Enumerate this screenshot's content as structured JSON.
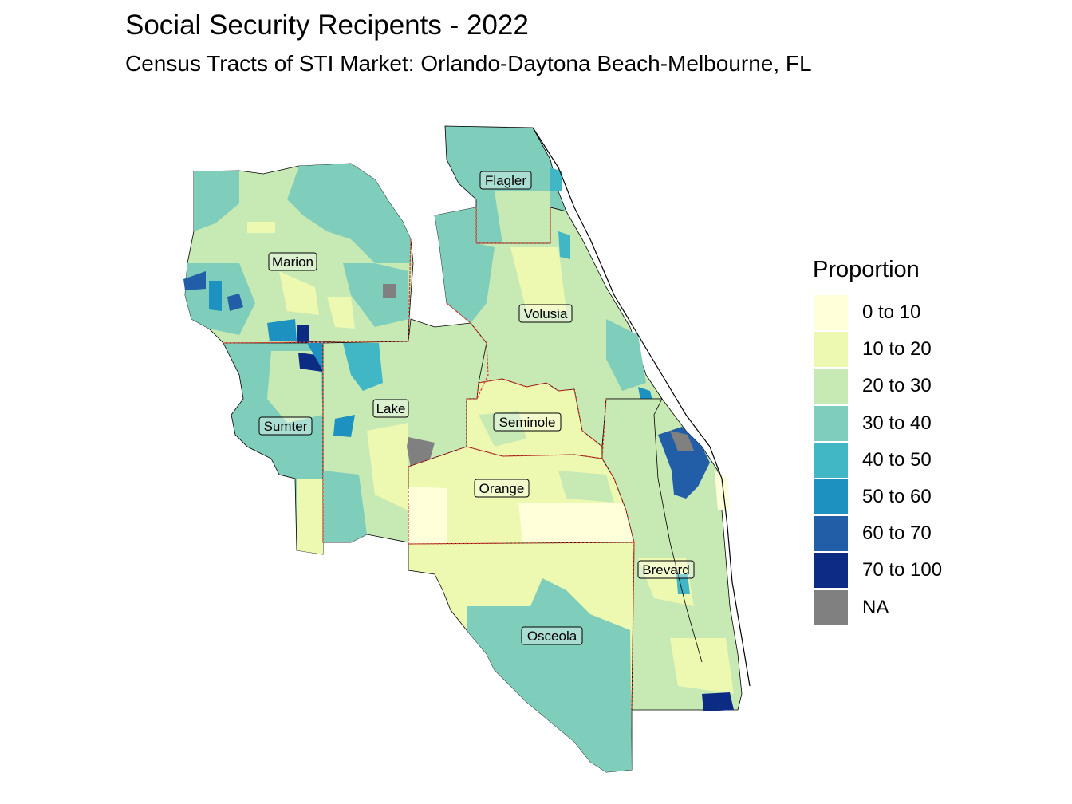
{
  "title": "Social Security Recipents - 2022",
  "subtitle": "Census Tracts of STI Market: Orlando-Daytona Beach-Melbourne, FL",
  "legend": {
    "title": "Proportion",
    "items": [
      {
        "label": "0 to 10",
        "color": "#ffffd9"
      },
      {
        "label": "10 to 20",
        "color": "#edf8b1"
      },
      {
        "label": "20 to 30",
        "color": "#c7e9b4"
      },
      {
        "label": "30 to 40",
        "color": "#7fcdbb"
      },
      {
        "label": "40 to 50",
        "color": "#41b6c4"
      },
      {
        "label": "50 to 60",
        "color": "#1d91c0"
      },
      {
        "label": "60 to 70",
        "color": "#225ea8"
      },
      {
        "label": "70 to 100",
        "color": "#0c2c84"
      },
      {
        "label": "NA",
        "color": "#808080"
      }
    ]
  },
  "counties": {
    "flagler": "Flagler",
    "marion": "Marion",
    "volusia": "Volusia",
    "lake": "Lake",
    "seminole": "Seminole",
    "sumter": "Sumter",
    "orange": "Orange",
    "brevard": "Brevard",
    "osceola": "Osceola"
  },
  "colors": {
    "county_border": "#e0392b",
    "outline": "#000000"
  }
}
